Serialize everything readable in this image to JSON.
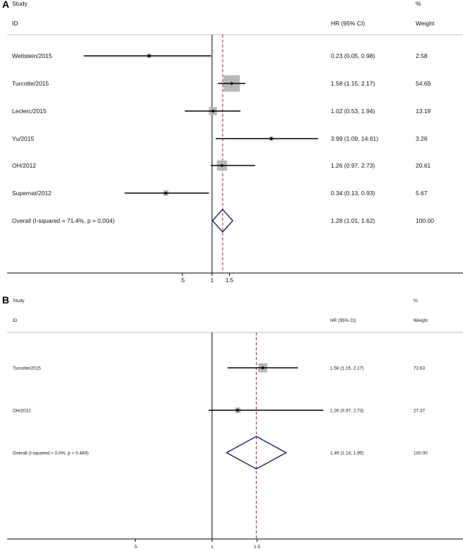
{
  "chart_data": [
    {
      "type": "forest",
      "panel": "A",
      "headers": {
        "study": "Study",
        "id": "ID",
        "effect": "HR (95% CI)",
        "weight_top": "%",
        "weight": "Weight"
      },
      "null_value": 1,
      "overall_value": 1.28,
      "x_ticks": [
        {
          "value": 0.5,
          "label": ".5"
        },
        {
          "value": 1,
          "label": "1"
        },
        {
          "value": 1.5,
          "label": "1.5"
        }
      ],
      "studies": [
        {
          "id": "Wettstein/2015",
          "hr": 0.23,
          "lo": 0.05,
          "hi": 0.98,
          "ci_text": "0.23 (0.05, 0.98)",
          "weight": 2.58,
          "weight_text": "2.58"
        },
        {
          "id": "Turcotte/2015",
          "hr": 1.58,
          "lo": 1.15,
          "hi": 2.17,
          "ci_text": "1.58 (1.15, 2.17)",
          "weight": 54.69,
          "weight_text": "54.69"
        },
        {
          "id": "Leclerc/2015",
          "hr": 1.02,
          "lo": 0.53,
          "hi": 1.94,
          "ci_text": "1.02 (0.53, 1.94)",
          "weight": 13.19,
          "weight_text": "13.19"
        },
        {
          "id": "Yu/2015",
          "hr": 3.99,
          "lo": 1.09,
          "hi": 14.61,
          "ci_text": "3.99 (1.09, 14.61)",
          "weight": 3.26,
          "weight_text": "3.26"
        },
        {
          "id": "OH/2012",
          "hr": 1.26,
          "lo": 0.97,
          "hi": 2.73,
          "ci_text": "1.26 (0.97, 2.73)",
          "weight": 20.61,
          "weight_text": "20.61"
        },
        {
          "id": "Supernat/2012",
          "hr": 0.34,
          "lo": 0.13,
          "hi": 0.93,
          "ci_text": "0.34 (0.13, 0.93)",
          "weight": 5.67,
          "weight_text": "5.67"
        }
      ],
      "overall": {
        "label": "Overall  (I-squared = 71.4%, p = 0.004)",
        "hr": 1.28,
        "lo": 1.01,
        "hi": 1.62,
        "ci_text": "1.28 (1.01, 1.62)",
        "weight_text": "100.00"
      },
      "colors": {
        "ref_line": "#a01c1c",
        "box": "#b8b8b8",
        "diamond": "#1e1e6e"
      }
    },
    {
      "type": "forest",
      "panel": "B",
      "headers": {
        "study": "Study",
        "id": "ID",
        "effect": "HR (95% CI)",
        "weight_top": "%",
        "weight": "Weight"
      },
      "null_value": 1,
      "overall_value": 1.49,
      "x_ticks": [
        {
          "value": 0.5,
          "label": ".5"
        },
        {
          "value": 1,
          "label": "1"
        },
        {
          "value": 1.5,
          "label": "1.5"
        }
      ],
      "studies": [
        {
          "id": "Turcotte/2015",
          "hr": 1.58,
          "lo": 1.15,
          "hi": 2.17,
          "ci_text": "1.58 (1.15, 2.17)",
          "weight": 72.63,
          "weight_text": "72.63"
        },
        {
          "id": "OH/2012",
          "hr": 1.26,
          "lo": 0.97,
          "hi": 2.73,
          "ci_text": "1.26 (0.97, 2.73)",
          "weight": 27.37,
          "weight_text": "27.37"
        }
      ],
      "overall": {
        "label": "Overall  (I-squared = 0.0%, p = 0.469)",
        "hr": 1.49,
        "lo": 1.14,
        "hi": 1.95,
        "ci_text": "1.49 (1.14, 1.95)",
        "weight_text": "100.00"
      },
      "colors": {
        "ref_line": "#a01c1c",
        "box": "#b8b8b8",
        "diamond": "#1e1e6e"
      }
    }
  ]
}
